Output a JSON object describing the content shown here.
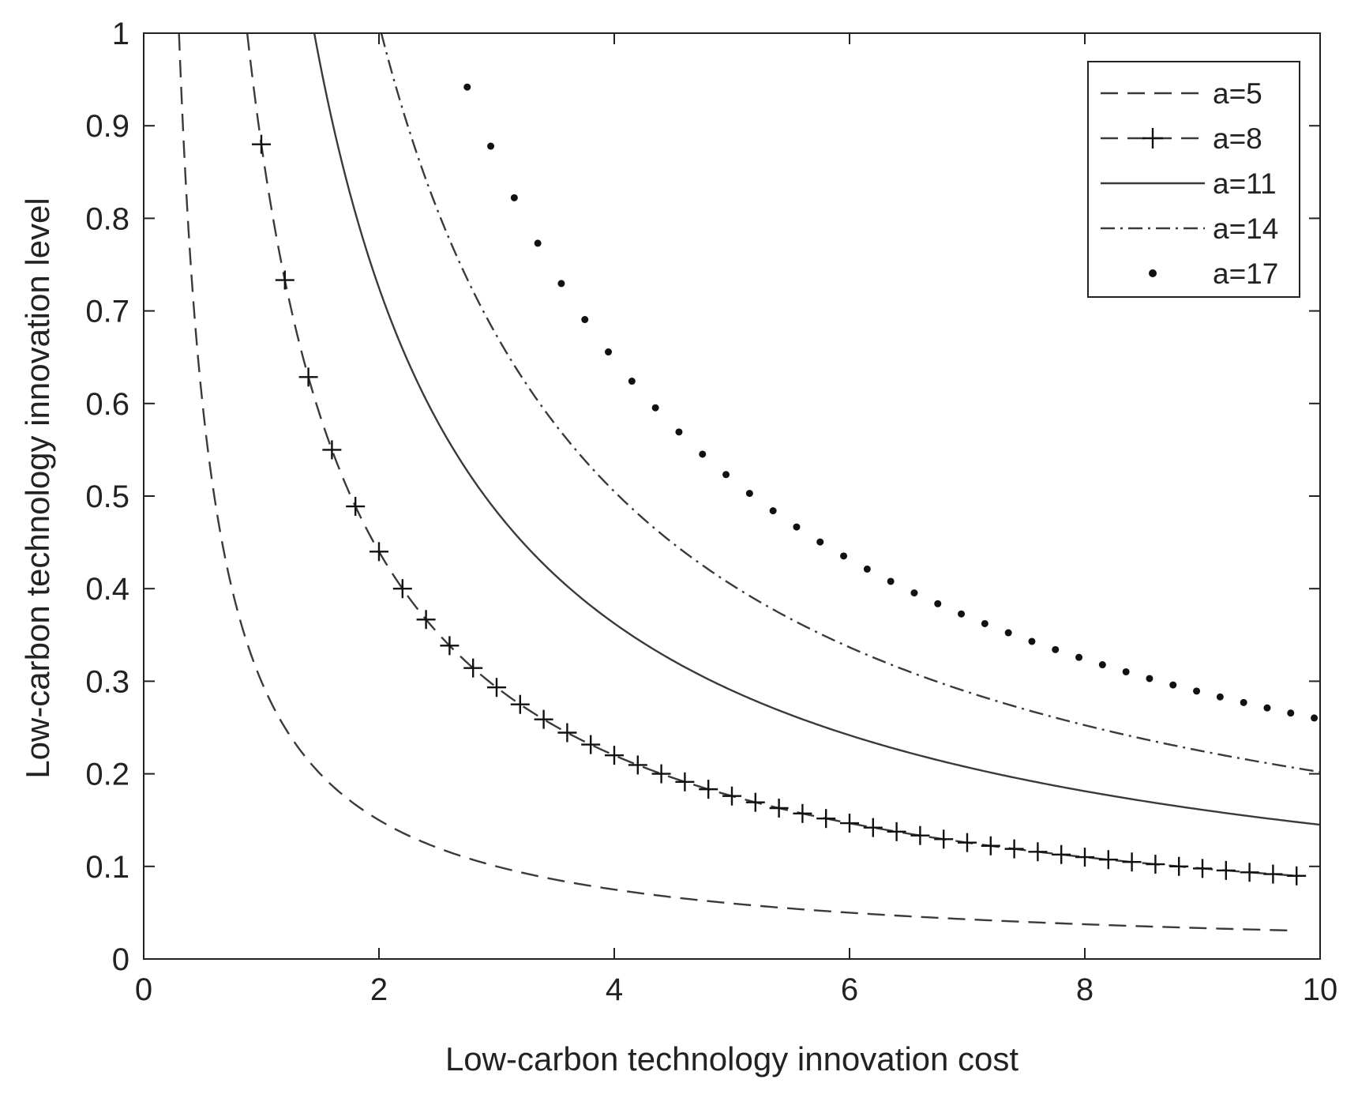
{
  "chart_data": {
    "type": "line",
    "title": "",
    "xlabel": "Low-carbon technology innovation cost",
    "ylabel": "Low-carbon technology innovation level",
    "xlim": [
      0,
      10
    ],
    "ylim": [
      0,
      1
    ],
    "x_ticks": [
      "0",
      "2",
      "4",
      "6",
      "8",
      "10"
    ],
    "y_ticks": [
      "0",
      "0.1",
      "0.2",
      "0.3",
      "0.4",
      "0.5",
      "0.6",
      "0.7",
      "0.8",
      "0.9",
      "1"
    ],
    "grid": false,
    "box": true,
    "legend_position": "top-right",
    "curve_form": "y = k / x",
    "series": [
      {
        "name": "a=5",
        "style": "dashed",
        "marker": "none",
        "k": 0.3,
        "x_range": [
          0.3,
          9.8
        ]
      },
      {
        "name": "a=8",
        "style": "dashed",
        "marker": "plus",
        "k": 0.88,
        "x_range": [
          0.88,
          9.8
        ],
        "marker_step": 0.2
      },
      {
        "name": "a=11",
        "style": "solid",
        "marker": "none",
        "k": 1.45,
        "x_range": [
          1.45,
          10
        ]
      },
      {
        "name": "a=14",
        "style": "dash-dot",
        "marker": "none",
        "k": 2.02,
        "x_range": [
          2.02,
          10
        ]
      },
      {
        "name": "a=17",
        "style": "dots-only",
        "marker": "dot",
        "k": 2.59,
        "x_range": [
          2.6,
          10
        ],
        "marker_step": 0.2
      }
    ],
    "colors": {
      "line": "#3a3a3a",
      "axis": "#222222",
      "background": "#ffffff"
    }
  }
}
